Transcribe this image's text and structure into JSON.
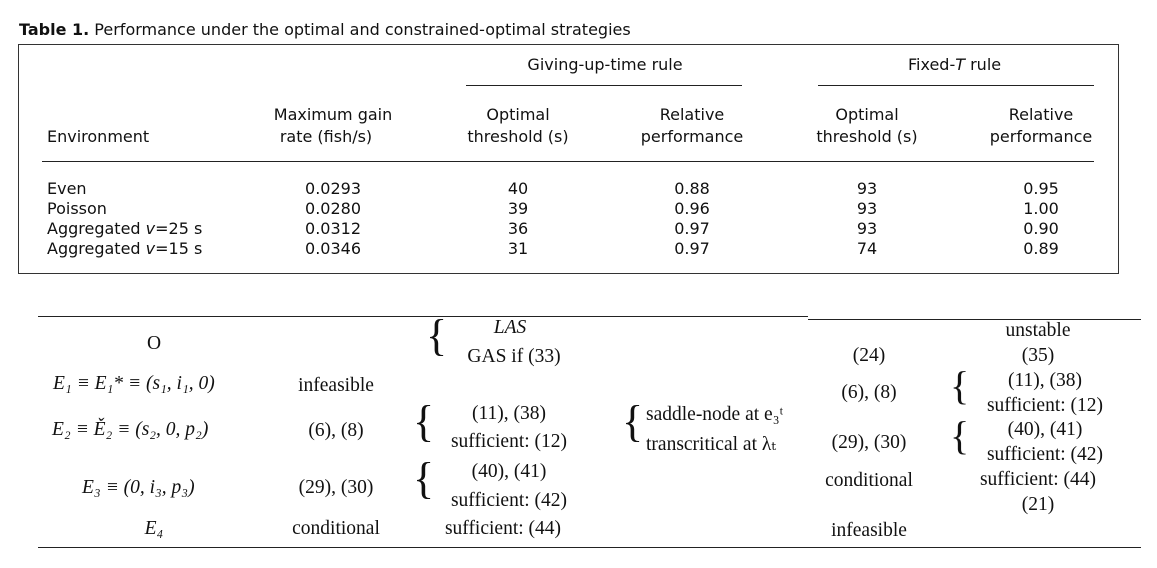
{
  "table1": {
    "caption_label": "Table 1.",
    "caption_text": " Performance under the optimal and constrained-optimal strategies",
    "group_headers": [
      "Giving-up-time rule",
      "Fixed-T rule"
    ],
    "col_headers": {
      "environment": "Environment",
      "max_gain_1": "Maximum gain",
      "max_gain_2": "rate (fish/s)",
      "opt_thr_1": "Optimal",
      "opt_thr_2": "threshold (s)",
      "rel_perf_1": "Relative",
      "rel_perf_2": "performance"
    },
    "rows": [
      {
        "env": "Even",
        "gain": "0.0293",
        "gut_thr": "40",
        "gut_perf": "0.88",
        "ft_thr": "93",
        "ft_perf": "0.95"
      },
      {
        "env": "Poisson",
        "gain": "0.0280",
        "gut_thr": "39",
        "gut_perf": "0.96",
        "ft_thr": "93",
        "ft_perf": "1.00"
      },
      {
        "env": "Aggregated v=25 s",
        "gain": "0.0312",
        "gut_thr": "36",
        "gut_perf": "0.97",
        "ft_thr": "93",
        "ft_perf": "0.90"
      },
      {
        "env": "Aggregated v=15 s",
        "gain": "0.0346",
        "gut_thr": "31",
        "gut_perf": "0.97",
        "ft_thr": "74",
        "ft_perf": "0.89"
      }
    ]
  },
  "table2": {
    "origin": "O",
    "e1": "E₁ ≡ E₁* ≡ (s₁, i₁, 0)",
    "e2": "E₂ ≡ Ě₂ ≡ (s₂, 0, p₂)",
    "e3": "E₃ ≡ (0, i₃, p₃)",
    "e4": "E₄",
    "infeasible": "infeasible",
    "e2_cond": "(6), (8)",
    "e3_cond": "(29), (30)",
    "e4_cond": "conditional",
    "las": "LAS",
    "gas": "GAS if (33)",
    "c3a": "(11), (38)",
    "c3b": "sufficient: (12)",
    "c3c": "(40), (41)",
    "c3d": "sufficient: (42)",
    "c3e": "sufficient: (44)",
    "bif1": "saddle-node at e₃ᵗ",
    "bif2": "transcritical at λₜ",
    "c5a": "(24)",
    "c5b": "(6), (8)",
    "c5c": "(29), (30)",
    "c5d": "conditional",
    "c5e": "infeasible",
    "c6a": "unstable",
    "c6b": "(35)",
    "c6c": "(11), (38)",
    "c6d": "sufficient: (12)",
    "c6e": "(40), (41)",
    "c6f": "sufficient: (42)",
    "c6g": "sufficient: (44)",
    "c6h": "(21)"
  }
}
